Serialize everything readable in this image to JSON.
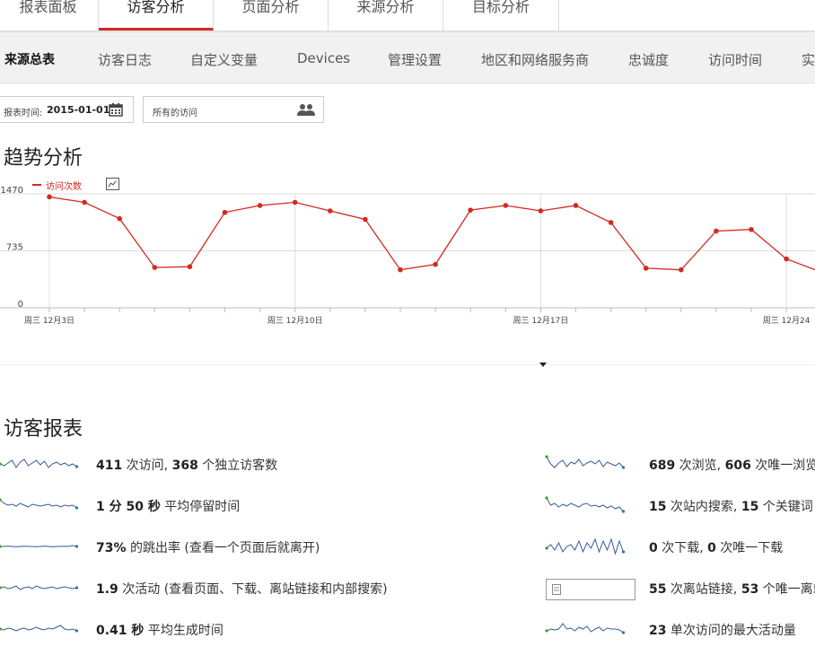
{
  "top_tabs": [
    "报表面板",
    "访客分析",
    "页面分析",
    "来源分析",
    "目标分析"
  ],
  "sub_nav": [
    "来源总表",
    "访客日志",
    "自定义变量",
    "Devices",
    "管理设置",
    "地区和网络服务商",
    "忠诚度",
    "访问时间",
    "实"
  ],
  "controls": {
    "date_label": "报表时间:",
    "date_value": "2015-01-01",
    "segment_value": "所有的访问"
  },
  "trend": {
    "title": "趋势分析",
    "legend": "访问次数"
  },
  "chart_data": {
    "type": "line",
    "series": [
      {
        "name": "访问次数",
        "values": [
          1430,
          1360,
          1150,
          520,
          530,
          1230,
          1320,
          1360,
          1250,
          1140,
          490,
          560,
          1260,
          1320,
          1250,
          1320,
          1100,
          510,
          490,
          990,
          1010,
          630,
          460
        ]
      }
    ],
    "yticks": [
      "0",
      "735",
      "1470"
    ],
    "ylim": [
      0,
      1470
    ],
    "xticks": [
      "周三 12月3日",
      "周三 12月10日",
      "周三 12月17日",
      "周三 12月24"
    ],
    "xtick_index": [
      0,
      7,
      14,
      21
    ],
    "grid": true
  },
  "visitor_report": {
    "title": "访客报表",
    "left": [
      {
        "bold": "411",
        "text": " 次访问, ",
        "bold2": "368",
        "text2": " 个独立访客数"
      },
      {
        "bold": "1 分 50 秒",
        "text": " 平均停留时间",
        "bold2": "",
        "text2": ""
      },
      {
        "bold": "73%",
        "text": " 的跳出率 (查看一个页面后就离开)",
        "bold2": "",
        "text2": ""
      },
      {
        "bold": "1.9",
        "text": " 次活动 (查看页面、下载、离站链接和内部搜索)",
        "bold2": "",
        "text2": ""
      },
      {
        "bold": "0.41 秒",
        "text": " 平均生成时间",
        "bold2": "",
        "text2": ""
      }
    ],
    "right": [
      {
        "bold": "689",
        "text": " 次浏览, ",
        "bold2": "606",
        "text2": " 次唯一浏览"
      },
      {
        "bold": "15",
        "text": " 次站内搜索, ",
        "bold2": "15",
        "text2": " 个关键词"
      },
      {
        "bold": "0",
        "text": " 次下载, ",
        "bold2": "0",
        "text2": " 次唯一下载"
      },
      {
        "bold": "55",
        "text": " 次离站链接, ",
        "bold2": "53",
        "text2": " 个唯一离站链接"
      },
      {
        "bold": "23",
        "text": " 单次访问的最大活动量",
        "bold2": "",
        "text2": ""
      }
    ]
  },
  "colors": {
    "accent": "#d4291f",
    "spark": "#3b5998"
  }
}
